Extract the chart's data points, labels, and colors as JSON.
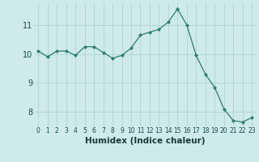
{
  "x": [
    0,
    1,
    2,
    3,
    4,
    5,
    6,
    7,
    8,
    9,
    10,
    11,
    12,
    13,
    14,
    15,
    16,
    17,
    18,
    19,
    20,
    21,
    22,
    23
  ],
  "y": [
    10.1,
    9.9,
    10.1,
    10.1,
    9.95,
    10.25,
    10.25,
    10.05,
    9.85,
    9.95,
    10.2,
    10.65,
    10.75,
    10.85,
    11.1,
    11.55,
    11.0,
    9.95,
    9.3,
    8.85,
    8.1,
    7.7,
    7.65,
    7.8
  ],
  "xlabel": "Humidex (Indice chaleur)",
  "ylim": [
    7.5,
    11.75
  ],
  "xlim": [
    -0.5,
    23.5
  ],
  "yticks": [
    8,
    9,
    10,
    11
  ],
  "xticks": [
    0,
    1,
    2,
    3,
    4,
    5,
    6,
    7,
    8,
    9,
    10,
    11,
    12,
    13,
    14,
    15,
    16,
    17,
    18,
    19,
    20,
    21,
    22,
    23
  ],
  "line_color": "#2d7d6e",
  "marker_color": "#2d7d6e",
  "bg_color": "#ceeaea",
  "grid_color": "#aacfcf",
  "xlabel_fontsize": 7.5,
  "ytick_fontsize": 7,
  "xtick_fontsize": 5.5
}
